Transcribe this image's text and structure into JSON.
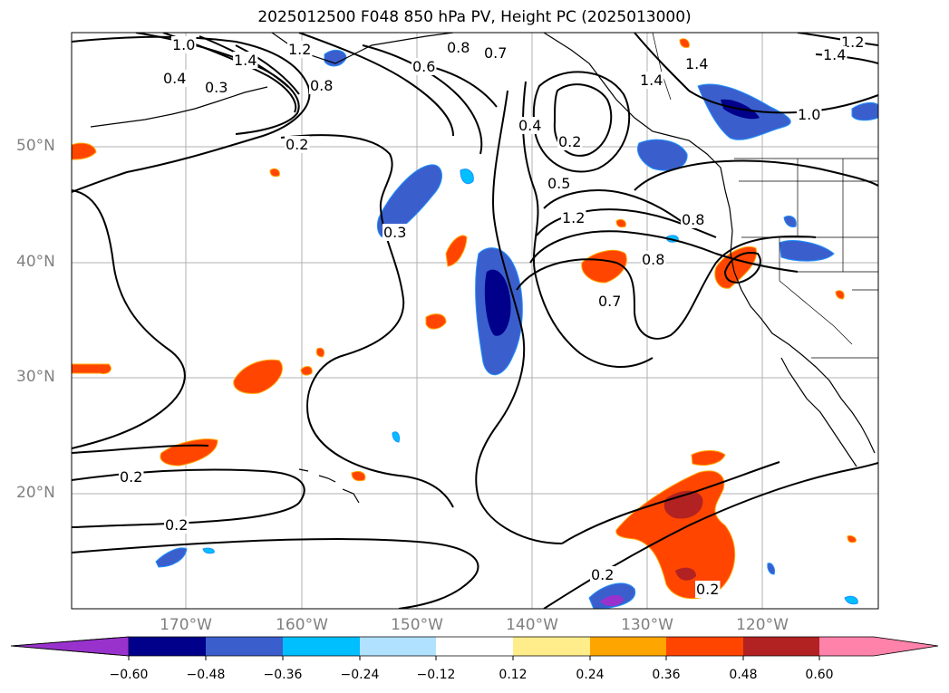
{
  "title": "2025012500 F048 850 hPa PV, Height PC (2025013000)",
  "lat_labels": [
    "50°N",
    "40°N",
    "30°N",
    "20°N"
  ],
  "lon_labels": [
    "170°W",
    "160°W",
    "150°W",
    "140°W",
    "130°W",
    "120°W"
  ],
  "colorbar": {
    "ticks": [
      "−0.60",
      "−0.48",
      "−0.36",
      "−0.24",
      "−0.12",
      "0.12",
      "0.24",
      "0.36",
      "0.48",
      "0.60"
    ],
    "colors": [
      "#9932cc",
      "#00008b",
      "#3a5fcd",
      "#00bfff",
      "#b0e2ff",
      "#ffffff",
      "#ffec8b",
      "#ffa500",
      "#ff4500",
      "#b22222",
      "#ff82ab"
    ]
  },
  "contour_labels": [
    "1.0",
    "1.4",
    "1.2",
    "0.4",
    "0.3",
    "0.8",
    "0.6",
    "0.8",
    "0.7",
    "1.4",
    "1.4",
    "1.2",
    "1.4",
    "0.4",
    "1.0",
    "0.2",
    "0.2",
    "0.5",
    "0.3",
    "1.2",
    "0.8",
    "0.8",
    "0.7",
    "0.2",
    "0.2",
    "0.2",
    "0.2"
  ],
  "colors": {
    "land_line": "#000000",
    "grid": "#b0b0b0"
  }
}
